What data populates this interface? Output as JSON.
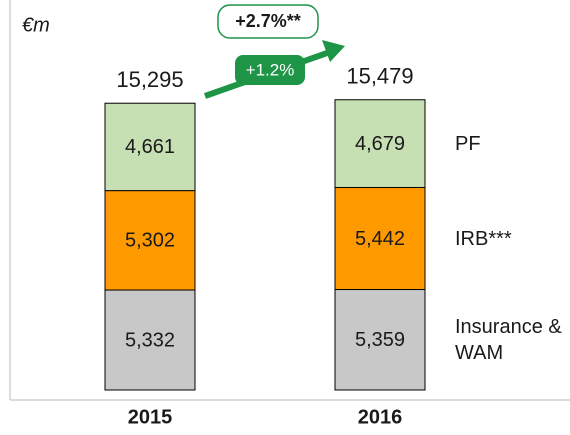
{
  "chart_data": {
    "type": "stacked_bar",
    "unit_label": "€m",
    "categories": [
      "2015",
      "2016"
    ],
    "series": [
      {
        "name": "Insurance & WAM",
        "color": "#c8c8c8",
        "values": [
          5332,
          5359
        ],
        "value_labels": [
          "5,332",
          "5,359"
        ]
      },
      {
        "name": "IRB***",
        "color": "#ff9900",
        "values": [
          5302,
          5442
        ],
        "value_labels": [
          "5,302",
          "5,442"
        ]
      },
      {
        "name": "PF",
        "color": "#c6e0b4",
        "values": [
          4661,
          4679
        ],
        "value_labels": [
          "4,661",
          "4,679"
        ]
      }
    ],
    "totals": [
      15295,
      15479
    ],
    "total_labels": [
      "15,295",
      "15,479"
    ],
    "annotations": [
      "+1.2%",
      "+2.7%**"
    ],
    "ylim": [
      0,
      20800
    ]
  }
}
